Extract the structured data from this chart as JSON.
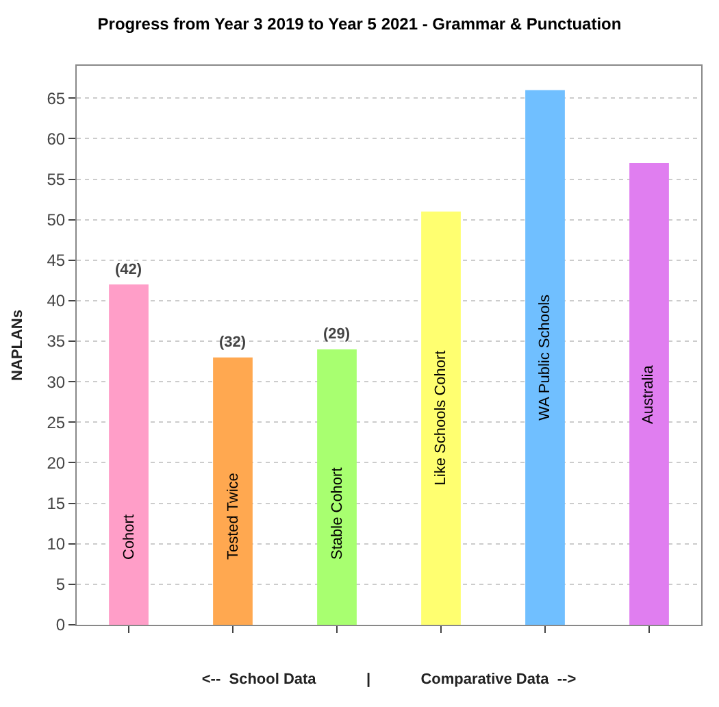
{
  "chart_data": {
    "type": "bar",
    "title": "Progress from Year 3 2019 to Year 5 2021 - Grammar & Punctuation",
    "ylabel": "NAPLANs",
    "xlabel": "<--  School Data            |            Comparative Data  -->",
    "categories": [
      "Cohort",
      "Tested Twice",
      "Stable Cohort",
      "Like Schools Cohort",
      "WA Public Schools",
      "Australia"
    ],
    "values": [
      42,
      33,
      34,
      51,
      66,
      57
    ],
    "colors": [
      "#ff9ec8",
      "#ffa850",
      "#a8ff70",
      "#ffff70",
      "#70bfff",
      "#e07ef0"
    ],
    "annotations": [
      {
        "text": "(42)",
        "x": "Cohort",
        "y": 42
      },
      {
        "text": "(32)",
        "x": "Tested Twice",
        "y": 33
      },
      {
        "text": "(29)",
        "x": "Stable Cohort",
        "y": 34
      }
    ],
    "ylim": [
      0,
      69
    ],
    "yticks": [
      0,
      5,
      10,
      15,
      20,
      25,
      30,
      35,
      40,
      45,
      50,
      55,
      60,
      65
    ],
    "grid": "y",
    "tick_labels": "y",
    "legend": false
  }
}
